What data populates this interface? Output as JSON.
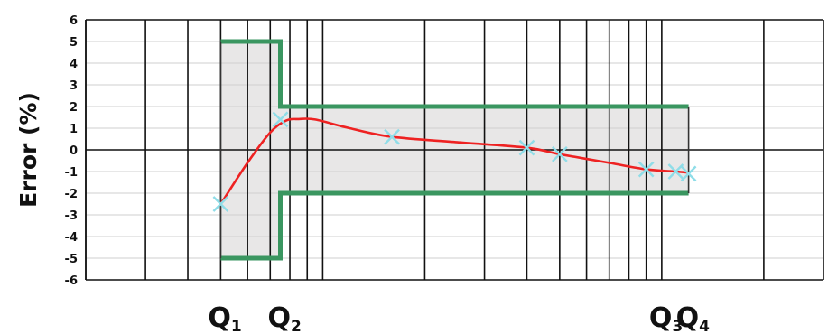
{
  "chart_data": {
    "type": "line",
    "title": "",
    "ylabel": "Error (%)",
    "xlabel": "",
    "x_scale": "log",
    "xlim": [
      0.2,
      30
    ],
    "ylim": [
      -6,
      6
    ],
    "yticks": [
      6,
      5,
      4,
      3,
      2,
      1,
      0,
      -1,
      -2,
      -3,
      -4,
      -5,
      -6
    ],
    "grid": true,
    "flow_markers": [
      {
        "base": "Q",
        "sub": "1",
        "x": 0.5
      },
      {
        "base": "Q",
        "sub": "2",
        "x": 0.75
      },
      {
        "base": "Q",
        "sub": "3",
        "x": 10
      },
      {
        "base": "Q",
        "sub": "4",
        "x": 12
      }
    ],
    "tolerance_envelope": {
      "color": "#3a9660",
      "fill": "#e8e7e7",
      "segments": [
        {
          "x_from": 0.5,
          "x_to": 0.75,
          "upper": 5,
          "lower": -5
        },
        {
          "x_from": 0.75,
          "x_to": 12,
          "upper": 2,
          "lower": -2
        }
      ]
    },
    "series": [
      {
        "color": "#ee2222",
        "marker_color": "#8fdde8",
        "points": [
          {
            "x": 0.5,
            "y": -2.5
          },
          {
            "x": 0.75,
            "y": 1.4
          },
          {
            "x": 1.6,
            "y": 0.6
          },
          {
            "x": 4,
            "y": 0.1
          },
          {
            "x": 5,
            "y": -0.2
          },
          {
            "x": 9,
            "y": -0.9
          },
          {
            "x": 11,
            "y": -1.0
          },
          {
            "x": 12,
            "y": -1.1
          }
        ],
        "curve": [
          {
            "x": 0.5,
            "y": -2.5
          },
          {
            "x": 0.6,
            "y": -0.6
          },
          {
            "x": 0.7,
            "y": 0.8
          },
          {
            "x": 0.78,
            "y": 1.35
          },
          {
            "x": 0.85,
            "y": 1.42
          },
          {
            "x": 0.95,
            "y": 1.4
          },
          {
            "x": 1.2,
            "y": 1.0
          },
          {
            "x": 1.6,
            "y": 0.6
          },
          {
            "x": 2.5,
            "y": 0.35
          },
          {
            "x": 4,
            "y": 0.1
          },
          {
            "x": 5,
            "y": -0.2
          },
          {
            "x": 7,
            "y": -0.6
          },
          {
            "x": 9,
            "y": -0.9
          },
          {
            "x": 11,
            "y": -1.0
          },
          {
            "x": 12,
            "y": -1.05
          }
        ]
      }
    ]
  }
}
